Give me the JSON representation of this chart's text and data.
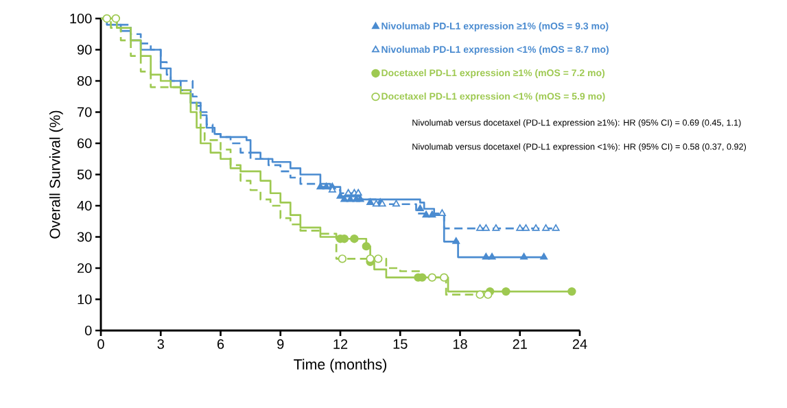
{
  "chart_data": {
    "type": "step",
    "xlabel": "Time (months)",
    "ylabel": "Overall Survival (%)",
    "xlim": [
      0,
      24
    ],
    "ylim": [
      0,
      100
    ],
    "xticks": [
      0,
      3,
      6,
      9,
      12,
      15,
      18,
      21,
      24
    ],
    "yticks": [
      0,
      10,
      20,
      30,
      40,
      50,
      60,
      70,
      80,
      90,
      100
    ],
    "grid": false,
    "legend": "top right",
    "annotations": [
      "Nivolumab versus docetaxel (PD-L1 expression ≥1%): HR (95% CI) = 0.69 (0.45, 1.1)",
      "Nivolumab versus docetaxel (PD-L1 expression <1%): HR (95% CI) = 0.58 (0.37, 0.92)"
    ],
    "series": [
      {
        "color": "#4a8bd0",
        "line_style": "solid",
        "x": [
          0,
          0.3,
          1,
          1.5,
          2,
          3,
          3.5,
          4,
          4.5,
          5,
          5.3,
          5.7,
          6,
          7.3,
          7.5,
          8,
          8.6,
          9.5,
          10,
          11,
          11.5,
          12,
          13,
          16,
          16.2,
          16.7,
          17.2,
          17.9,
          22.3
        ],
        "values": [
          100,
          98,
          96,
          93,
          90,
          84,
          80,
          77,
          73,
          69,
          65,
          63,
          62,
          61,
          57,
          55,
          54,
          52,
          50,
          47,
          46,
          43,
          42,
          41,
          39,
          37,
          28.5,
          23.5,
          23.5
        ]
      },
      {
        "color": "#4a8bd0",
        "line_style": "dashed",
        "x": [
          0,
          0.8,
          1.5,
          2,
          2.5,
          3,
          3.3,
          3.5,
          4.6,
          4.8,
          5,
          5.3,
          5.6,
          6,
          6.5,
          7,
          7.5,
          8.4,
          9,
          9.5,
          10,
          11,
          11.5,
          12,
          13,
          14,
          15.8,
          17.2,
          22.9
        ],
        "values": [
          100,
          98,
          95,
          92,
          90,
          86,
          82,
          80,
          75,
          72,
          70,
          66,
          63,
          62,
          60,
          57,
          55,
          53,
          51,
          49,
          47,
          46,
          45,
          44,
          42,
          40.5,
          37.5,
          32.7,
          32.7
        ]
      },
      {
        "color": "#9ec951",
        "line_style": "solid",
        "x": [
          0,
          0.8,
          1.5,
          2,
          2.5,
          3,
          3.5,
          4,
          4.5,
          4.8,
          5,
          5.5,
          6,
          6.5,
          7,
          8,
          8.5,
          9,
          9.5,
          10,
          11,
          12,
          13.3,
          13.5,
          13.7,
          14.3,
          17.4,
          23.6
        ],
        "values": [
          100,
          97,
          93,
          88,
          82,
          80,
          78,
          76,
          70,
          65,
          60,
          57,
          55,
          52,
          51,
          48,
          44,
          41,
          37,
          33,
          30,
          29.4,
          27,
          22,
          19.6,
          17,
          12.5,
          12.5
        ]
      },
      {
        "color": "#9ec951",
        "line_style": "dashed",
        "x": [
          0,
          0.5,
          1,
          1.5,
          2,
          2.5,
          4,
          4.5,
          4.8,
          5,
          5.2,
          6,
          6.5,
          7,
          7.5,
          8,
          8.5,
          9,
          9.5,
          10,
          11,
          11.8,
          14.3,
          15,
          16,
          17.3,
          19.5
        ],
        "values": [
          100,
          97,
          93,
          88,
          83,
          78,
          77,
          73,
          70,
          65,
          61,
          58,
          53,
          48,
          45,
          42,
          40,
          36,
          34,
          32,
          31,
          23,
          20,
          19,
          17,
          11.5,
          11.5
        ]
      },
      {
        "type": "scatter",
        "name": "Nivolumab PD-L1 expression ≥1% (mOS = 9.3 mo)",
        "color": "#4a8bd0",
        "marker": "triangle",
        "x": [
          11.0,
          11.3,
          11.6,
          12.0,
          12.2,
          12.5,
          12.8,
          13.0,
          13.5,
          14.0,
          16.0,
          16.3,
          16.6,
          17.8,
          19.3,
          19.6,
          21.2,
          22.2
        ],
        "values": [
          46,
          46,
          46,
          43,
          42,
          42,
          42,
          42,
          41,
          41,
          39,
          37,
          37,
          28.5,
          23.5,
          23.5,
          23.5,
          23.5
        ]
      },
      {
        "type": "scatter",
        "name": "Nivolumab PD-L1 expression <1% (mOS = 8.7 mo)",
        "color": "#4a8bd0",
        "marker": "triangle",
        "line_style": "dashed",
        "x": [
          11.6,
          12.4,
          12.7,
          12.9,
          13.8,
          14.1,
          14.8,
          17.1,
          19.0,
          19.3,
          19.8,
          21.0,
          21.3,
          21.8,
          22.3,
          22.8
        ],
        "values": [
          45,
          44,
          44,
          44,
          40.5,
          40.5,
          40.5,
          37.5,
          32.7,
          32.7,
          32.7,
          32.7,
          32.7,
          32.7,
          32.7,
          32.7
        ]
      },
      {
        "type": "scatter",
        "name": "Docetaxel PD-L1 expression ≥1% (mOS = 7.2 mo)",
        "color": "#9ec951",
        "marker": "circle",
        "x": [
          12.0,
          12.2,
          12.7,
          13.3,
          13.5,
          15.9,
          16.1,
          19.5,
          20.3,
          23.6
        ],
        "values": [
          29.4,
          29.4,
          29.4,
          27,
          22,
          17,
          17,
          12.5,
          12.5,
          12.5
        ]
      },
      {
        "type": "scatter",
        "name": "Docetaxel PD-L1 expression <1% (mOS = 5.9 mo)",
        "color": "#9ec951",
        "marker": "circle",
        "line_style": "dashed",
        "x": [
          0.3,
          0.75,
          12.1,
          13.5,
          13.9,
          16.6,
          17.2,
          19.0,
          19.4
        ],
        "values": [
          100,
          100,
          23,
          23,
          23,
          17,
          17,
          11.5,
          11.5
        ]
      }
    ]
  }
}
